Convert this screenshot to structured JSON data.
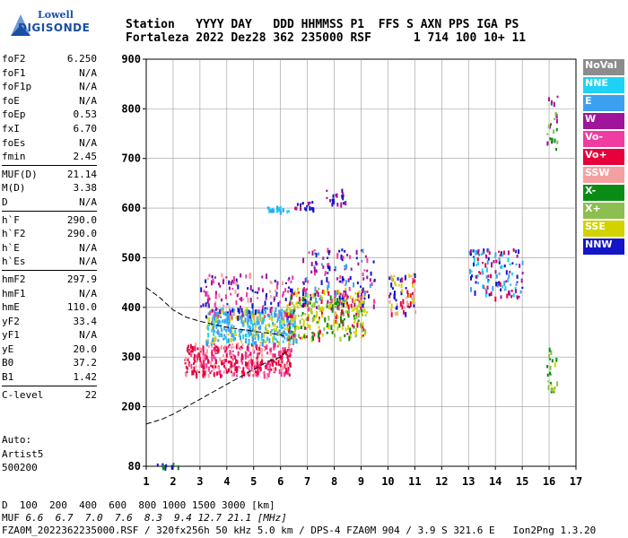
{
  "logo": {
    "line1": "Lowell",
    "line2": "DIGISONDE"
  },
  "header": {
    "line1": "Station   YYYY DAY   DDD HHMMSS P1  FFS S AXN PPS IGA PS",
    "line2": "Fortaleza 2022 Dez28 362 235000 RSF      1 714 100 10+ 11"
  },
  "params": [
    [
      {
        "k": "foF2",
        "v": "6.250"
      },
      {
        "k": "foF1",
        "v": "N/A"
      },
      {
        "k": "foF1p",
        "v": "N/A"
      },
      {
        "k": "foE",
        "v": "N/A"
      },
      {
        "k": "foEp",
        "v": "0.53"
      },
      {
        "k": "fxI",
        "v": "6.70"
      },
      {
        "k": "foEs",
        "v": "N/A"
      },
      {
        "k": "fmin",
        "v": "2.45"
      }
    ],
    [
      {
        "k": "MUF(D)",
        "v": "21.14"
      },
      {
        "k": "M(D)",
        "v": "3.38"
      },
      {
        "k": "D",
        "v": "N/A"
      }
    ],
    [
      {
        "k": "h`F",
        "v": "290.0"
      },
      {
        "k": "h`F2",
        "v": "290.0"
      },
      {
        "k": "h`E",
        "v": "N/A"
      },
      {
        "k": "h`Es",
        "v": "N/A"
      }
    ],
    [
      {
        "k": "hmF2",
        "v": "297.9"
      },
      {
        "k": "hmF1",
        "v": "N/A"
      },
      {
        "k": "hmE",
        "v": "110.0"
      },
      {
        "k": "yF2",
        "v": "33.4"
      },
      {
        "k": "yF1",
        "v": "N/A"
      },
      {
        "k": "yE",
        "v": "20.0"
      },
      {
        "k": "B0",
        "v": "37.2"
      },
      {
        "k": "B1",
        "v": "1.42"
      }
    ],
    [
      {
        "k": "C-level",
        "v": "22"
      }
    ]
  ],
  "auto": {
    "line1": "Auto:",
    "line2": "Artist5",
    "line3": "500200"
  },
  "legend": [
    {
      "label": "NoVal",
      "color": "#8c8c8c"
    },
    {
      "label": "NNE",
      "color": "#1ed2f5"
    },
    {
      "label": "E",
      "color": "#3ca0f0"
    },
    {
      "label": "W",
      "color": "#a0149b"
    },
    {
      "label": "Vo-",
      "color": "#f03ca0"
    },
    {
      "label": "Vo+",
      "color": "#e6003c"
    },
    {
      "label": "SSW",
      "color": "#f5a0a0"
    },
    {
      "label": "X-",
      "color": "#0a8c14"
    },
    {
      "label": "X+",
      "color": "#8cbe50"
    },
    {
      "label": "SSE",
      "color": "#d2d200"
    },
    {
      "label": "NNW",
      "color": "#1414c8"
    }
  ],
  "footer": {
    "d_label": "D",
    "d_values": "  100  200  400  600  800 1000 1500 3000 [km]",
    "muf_label": "MUF",
    "muf_values": " 6.6  6.7  7.0  7.6  8.3  9.4 12.7 21.1 [MHz]",
    "line3": "FZA0M_2022362235000.RSF / 320fx256h 50 kHz 5.0 km / DPS-4 FZA0M 904 / 3.9 S 321.6 E   Ion2Png 1.3.20"
  },
  "chart_data": {
    "type": "scatter",
    "title": "",
    "xlabel": "",
    "ylabel": "",
    "xlim": [
      1,
      17
    ],
    "ylim": [
      80,
      900
    ],
    "x_ticks": [
      1,
      2,
      3,
      4,
      5,
      6,
      7,
      8,
      9,
      10,
      11,
      12,
      13,
      14,
      15,
      16,
      17
    ],
    "y_ticks": [
      80,
      200,
      300,
      400,
      500,
      600,
      700,
      800,
      900
    ],
    "grid": true,
    "legend_position": "right",
    "clusters": [
      {
        "x0": 2.4,
        "x1": 6.4,
        "y0": 265,
        "y1": 330,
        "colors": [
          "#e6003c",
          "#e6003c",
          "#f03ca0",
          "#f5a0a0"
        ],
        "n": 420
      },
      {
        "x0": 3.2,
        "x1": 6.6,
        "y0": 330,
        "y1": 400,
        "colors": [
          "#3ca0f0",
          "#1ed2f5",
          "#3ca0f0",
          "#d2d200"
        ],
        "n": 380
      },
      {
        "x0": 3.0,
        "x1": 6.5,
        "y0": 380,
        "y1": 470,
        "colors": [
          "#a0149b",
          "#f03ca0",
          "#1414c8",
          "#f5a0a0"
        ],
        "n": 160
      },
      {
        "x0": 6.2,
        "x1": 9.2,
        "y0": 340,
        "y1": 440,
        "colors": [
          "#d2d200",
          "#d2d200",
          "#0a8c14",
          "#8cbe50",
          "#e6003c"
        ],
        "n": 320
      },
      {
        "x0": 6.8,
        "x1": 9.5,
        "y0": 400,
        "y1": 520,
        "colors": [
          "#1414c8",
          "#a0149b",
          "#3ca0f0",
          "#f03ca0"
        ],
        "n": 150
      },
      {
        "x0": 10.0,
        "x1": 11.0,
        "y0": 390,
        "y1": 470,
        "colors": [
          "#f5a0a0",
          "#e6003c",
          "#d2d200",
          "#1414c8"
        ],
        "n": 70
      },
      {
        "x0": 13.0,
        "x1": 15.0,
        "y0": 420,
        "y1": 520,
        "colors": [
          "#1ed2f5",
          "#3ca0f0",
          "#1414c8",
          "#e6003c",
          "#a0149b"
        ],
        "n": 130
      },
      {
        "x0": 15.9,
        "x1": 16.3,
        "y0": 230,
        "y1": 320,
        "colors": [
          "#0a8c14",
          "#8cbe50",
          "#d2d200"
        ],
        "n": 25
      },
      {
        "x0": 15.9,
        "x1": 16.3,
        "y0": 720,
        "y1": 830,
        "colors": [
          "#0a8c14",
          "#8cbe50",
          "#a0149b"
        ],
        "n": 25
      },
      {
        "x0": 5.5,
        "x1": 6.3,
        "y0": 595,
        "y1": 605,
        "colors": [
          "#3ca0f0",
          "#1ed2f5"
        ],
        "n": 25
      },
      {
        "x0": 6.5,
        "x1": 7.3,
        "y0": 600,
        "y1": 615,
        "colors": [
          "#1414c8",
          "#a0149b"
        ],
        "n": 18
      },
      {
        "x0": 7.6,
        "x1": 8.4,
        "y0": 610,
        "y1": 640,
        "colors": [
          "#1414c8",
          "#a0149b"
        ],
        "n": 20
      },
      {
        "x0": 1.3,
        "x1": 2.2,
        "y0": 80,
        "y1": 90,
        "colors": [
          "#1414c8",
          "#0a8c14"
        ],
        "n": 10
      }
    ],
    "trace": {
      "x": [
        1.0,
        1.6,
        2.0,
        2.5,
        3.0,
        3.5,
        4.0,
        4.5,
        5.0,
        5.5,
        6.0,
        6.2
      ],
      "y": [
        165,
        175,
        185,
        200,
        215,
        230,
        245,
        260,
        275,
        290,
        300,
        310
      ]
    },
    "trace2": {
      "x": [
        1.0,
        1.5,
        2.0,
        2.5,
        3.0,
        3.5,
        4.0,
        5.0,
        6.0,
        6.2
      ],
      "y": [
        440,
        420,
        395,
        380,
        372,
        366,
        360,
        352,
        345,
        340
      ]
    }
  }
}
